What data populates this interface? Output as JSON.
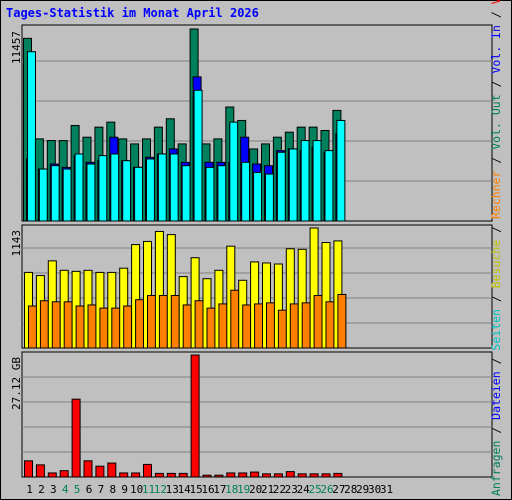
{
  "chart_data": {
    "type": "bar",
    "title": "Tages-Statistik im Monat April 2026",
    "x": [
      "1",
      "2",
      "3",
      "4",
      "5",
      "6",
      "7",
      "8",
      "9",
      "10",
      "11",
      "12",
      "13",
      "14",
      "15",
      "16",
      "17",
      "18",
      "19",
      "20",
      "21",
      "22",
      "23",
      "24",
      "25",
      "26",
      "27",
      "28",
      "29",
      "30",
      "31"
    ],
    "weekend_days": [
      4,
      5,
      11,
      12,
      18,
      19,
      25,
      26
    ],
    "panels": [
      {
        "name": "top",
        "max_label": "11457",
        "ymax": 11457,
        "series": [
          {
            "name": "Anfragen",
            "color": "#00805c",
            "values": [
              10900,
              4900,
              4800,
              4800,
              5700,
              5000,
              5600,
              5900,
              4900,
              4600,
              4900,
              5600,
              6100,
              4600,
              11457,
              4600,
              4900,
              6800,
              6000,
              4300,
              4600,
              5000,
              5300,
              5600,
              5600,
              5400,
              6600,
              0,
              0,
              0,
              0
            ]
          },
          {
            "name": "Dateien",
            "color": "#0000ff",
            "values": [
              3700,
              3100,
              3400,
              3200,
              3900,
              3500,
              3600,
              5000,
              3600,
              3200,
              3800,
              4000,
              4300,
              3500,
              8600,
              3500,
              3500,
              3500,
              5000,
              3400,
              3300,
              4200,
              4300,
              4200,
              4400,
              4100,
              5200,
              0,
              0,
              0,
              0
            ]
          },
          {
            "name": "Seiten",
            "color": "#00ffff",
            "values": [
              10100,
              3100,
              3300,
              3100,
              4000,
              3400,
              3900,
              4000,
              3600,
              3200,
              3700,
              4000,
              4000,
              3300,
              7800,
              3200,
              3300,
              5900,
              3500,
              2900,
              2800,
              4100,
              4300,
              4800,
              4800,
              4200,
              6000,
              0,
              0,
              0,
              0
            ]
          }
        ]
      },
      {
        "name": "middle",
        "max_label": "1143",
        "ymax": 1143,
        "series": [
          {
            "name": "Besuche",
            "color": "#ffff00",
            "values": [
              720,
              690,
              830,
              740,
              730,
              740,
              720,
              720,
              760,
              985,
              1015,
              1110,
              1080,
              680,
              860,
              660,
              740,
              970,
              645,
              820,
              810,
              800,
              945,
              940,
              1143,
              1005,
              1020,
              0,
              0,
              0,
              0
            ]
          },
          {
            "name": "Rechner",
            "color": "#ff8000",
            "values": [
              400,
              450,
              440,
              440,
              400,
              410,
              380,
              380,
              400,
              460,
              500,
              500,
              500,
              410,
              450,
              380,
              420,
              550,
              410,
              420,
              430,
              360,
              420,
              430,
              500,
              440,
              510,
              0,
              0,
              0,
              0
            ]
          }
        ]
      },
      {
        "name": "bottom",
        "max_label": "27.12 GB",
        "ymax": 27.12,
        "series": [
          {
            "name": "Volumen",
            "color": "#ff0000",
            "values": [
              3.6,
              2.7,
              0.9,
              1.4,
              17.3,
              3.6,
              2.4,
              3.1,
              0.9,
              0.9,
              2.8,
              0.8,
              0.8,
              0.8,
              27.12,
              0.4,
              0.4,
              0.9,
              0.9,
              1.1,
              0.7,
              0.7,
              1.2,
              0.7,
              0.7,
              0.7,
              0.8,
              0,
              0,
              0,
              0
            ]
          }
        ]
      }
    ],
    "right_legend": [
      {
        "text": "Anfragen",
        "color": "#00805c"
      },
      {
        "text": " / ",
        "color": "#000000"
      },
      {
        "text": "Dateien",
        "color": "#0000ff"
      },
      {
        "text": " / ",
        "color": "#000000"
      },
      {
        "text": "Seiten",
        "color": "#00c0c0"
      },
      {
        "text": " / ",
        "color": "#000000"
      },
      {
        "text": "Besuche",
        "color": "#c0c000"
      },
      {
        "text": " / ",
        "color": "#000000"
      },
      {
        "text": "Rechner",
        "color": "#ff8000"
      },
      {
        "text": " / ",
        "color": "#000000"
      },
      {
        "text": "Vol. Out",
        "color": "#00805c"
      },
      {
        "text": " / ",
        "color": "#000000"
      },
      {
        "text": "Vol. In",
        "color": "#0000ff"
      },
      {
        "text": " / ",
        "color": "#000000"
      },
      {
        "text": "Volumen",
        "color": "#ff0000"
      }
    ],
    "colors": {
      "background": "#c0c0c0",
      "title": "#0000ff",
      "weekend_label": "#00805c",
      "weekday_label": "#000000"
    }
  }
}
